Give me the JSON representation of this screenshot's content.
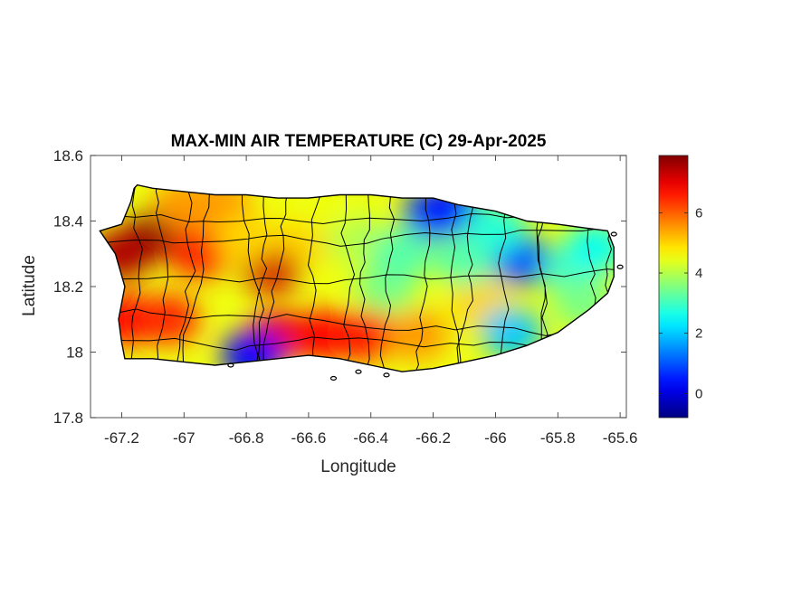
{
  "chart_data": {
    "type": "heatmap",
    "title": "MAX-MIN AIR TEMPERATURE (C) 29-Apr-2025",
    "xlabel": "Longitude",
    "ylabel": "Latitude",
    "xlim": [
      -67.3,
      -65.58
    ],
    "ylim": [
      17.8,
      18.6
    ],
    "xticks": [
      -67.2,
      -67,
      -66.8,
      -66.6,
      -66.4,
      -66.2,
      -66,
      -65.8,
      -65.6
    ],
    "xtick_labels": [
      "-67.2",
      "-67",
      "-66.8",
      "-66.6",
      "-66.4",
      "-66.2",
      "-66",
      "-65.8",
      "-65.6"
    ],
    "yticks": [
      17.8,
      18,
      18.2,
      18.4,
      18.6
    ],
    "ytick_labels": [
      "17.8",
      "18",
      "18.2",
      "18.4",
      "18.6"
    ],
    "grid": false,
    "colormap": "jet",
    "colorbar": {
      "limits": [
        -0.8,
        7.9
      ],
      "ticks": [
        0,
        2,
        4,
        6
      ],
      "tick_labels": [
        "0",
        "2",
        "4",
        "6"
      ],
      "placement": "right"
    },
    "boundary_lon": [
      -67.27,
      -67.2,
      -67.17,
      -67.16,
      -67.15,
      -67.1,
      -67.0,
      -66.9,
      -66.8,
      -66.7,
      -66.6,
      -66.5,
      -66.4,
      -66.3,
      -66.2,
      -66.12,
      -66.0,
      -65.9,
      -65.8,
      -65.72,
      -65.64,
      -65.62,
      -65.62,
      -65.64,
      -65.7,
      -65.8,
      -65.9,
      -66.0,
      -66.1,
      -66.2,
      -66.3,
      -66.4,
      -66.5,
      -66.6,
      -66.7,
      -66.8,
      -66.9,
      -67.0,
      -67.1,
      -67.19,
      -67.2,
      -67.21,
      -67.19,
      -67.22
    ],
    "boundary_lat": [
      18.37,
      18.39,
      18.46,
      18.5,
      18.51,
      18.5,
      18.49,
      18.48,
      18.48,
      18.47,
      18.47,
      18.48,
      18.48,
      18.47,
      18.47,
      18.45,
      18.43,
      18.4,
      18.39,
      18.38,
      18.37,
      18.32,
      18.23,
      18.18,
      18.13,
      18.06,
      18.02,
      17.99,
      17.97,
      17.95,
      17.94,
      17.96,
      17.98,
      17.99,
      17.98,
      17.97,
      17.96,
      17.97,
      17.98,
      17.98,
      18.03,
      18.1,
      18.2,
      18.3
    ],
    "hotspots": [
      {
        "lon": -67.08,
        "lat": 18.36,
        "value": 7.8
      },
      {
        "lon": -67.2,
        "lat": 18.3,
        "value": 7.5
      },
      {
        "lon": -67.18,
        "lat": 18.1,
        "value": 6.8
      },
      {
        "lon": -67.05,
        "lat": 18.1,
        "value": 6.5
      },
      {
        "lon": -66.72,
        "lat": 18.26,
        "value": 7.2
      },
      {
        "lon": -66.7,
        "lat": 18.05,
        "value": 7.0
      },
      {
        "lon": -66.55,
        "lat": 18.05,
        "value": 6.8
      },
      {
        "lon": -66.42,
        "lat": 18.05,
        "value": 6.6
      },
      {
        "lon": -66.95,
        "lat": 18.3,
        "value": 6.5
      },
      {
        "lon": -66.88,
        "lat": 18.45,
        "value": 5.5
      },
      {
        "lon": -66.6,
        "lat": 18.35,
        "value": 5.0
      },
      {
        "lon": -66.25,
        "lat": 18.05,
        "value": 5.5
      },
      {
        "lon": -66.05,
        "lat": 18.15,
        "value": 5.0
      },
      {
        "lon": -66.2,
        "lat": 18.42,
        "value": 0.8
      },
      {
        "lon": -66.15,
        "lat": 18.44,
        "value": 0.5
      },
      {
        "lon": -65.92,
        "lat": 18.28,
        "value": 1.0
      },
      {
        "lon": -65.95,
        "lat": 18.06,
        "value": 2.0
      },
      {
        "lon": -66.78,
        "lat": 17.99,
        "value": 0.3
      },
      {
        "lon": -66.1,
        "lat": 18.28,
        "value": 3.2
      },
      {
        "lon": -66.35,
        "lat": 18.2,
        "value": 3.5
      },
      {
        "lon": -65.75,
        "lat": 18.25,
        "value": 3.0
      },
      {
        "lon": -65.68,
        "lat": 18.32,
        "value": 2.6
      },
      {
        "lon": -65.72,
        "lat": 18.15,
        "value": 3.5
      },
      {
        "lon": -66.0,
        "lat": 18.38,
        "value": 2.8
      },
      {
        "lon": -66.45,
        "lat": 18.35,
        "value": 4.0
      },
      {
        "lon": -66.55,
        "lat": 18.45,
        "value": 4.5
      },
      {
        "lon": -66.3,
        "lat": 18.3,
        "value": 3.2
      },
      {
        "lon": -66.8,
        "lat": 18.35,
        "value": 5.0
      },
      {
        "lon": -67.0,
        "lat": 18.45,
        "value": 5.5
      }
    ],
    "base_value": 4.5
  }
}
